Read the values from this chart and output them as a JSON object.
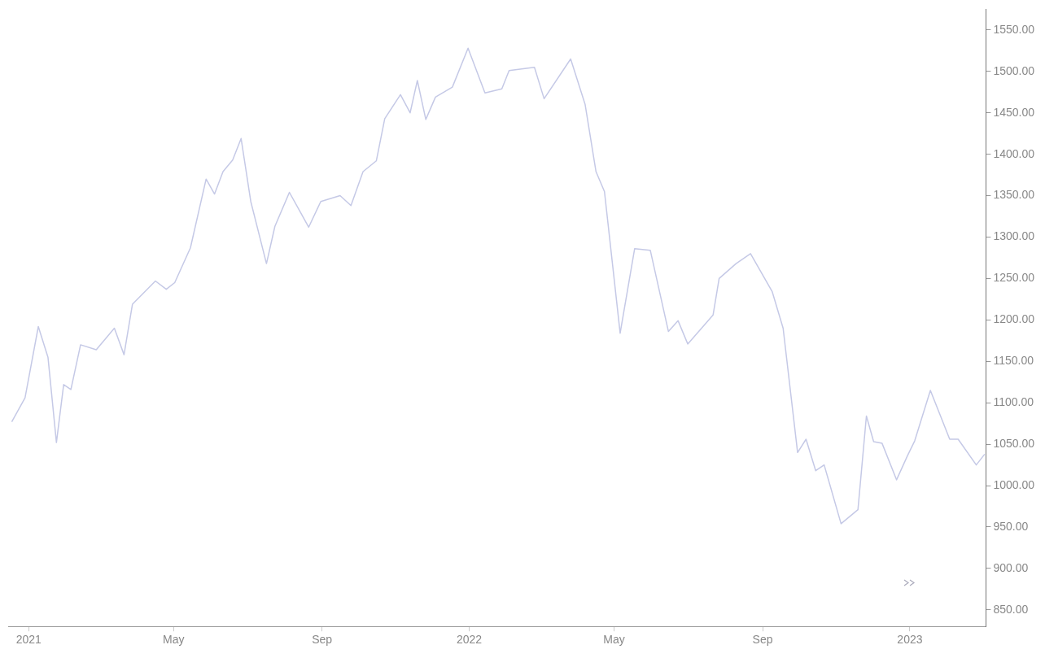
{
  "chart_data": {
    "type": "line",
    "x": [
      "2020-12-18",
      "2020-12-29",
      "2021-01-09",
      "2021-01-17",
      "2021-01-24",
      "2021-01-30",
      "2021-02-05",
      "2021-02-13",
      "2021-02-26",
      "2021-03-13",
      "2021-03-21",
      "2021-03-28",
      "2021-04-16",
      "2021-04-25",
      "2021-05-02",
      "2021-05-15",
      "2021-05-28",
      "2021-06-04",
      "2021-06-11",
      "2021-06-19",
      "2021-06-26",
      "2021-07-04",
      "2021-07-17",
      "2021-07-24",
      "2021-08-05",
      "2021-08-21",
      "2021-08-31",
      "2021-09-16",
      "2021-09-25",
      "2021-10-05",
      "2021-10-16",
      "2021-10-23",
      "2021-11-05",
      "2021-11-13",
      "2021-11-19",
      "2021-11-26",
      "2021-12-04",
      "2021-12-18",
      "2021-12-31",
      "2022-01-14",
      "2022-01-28",
      "2022-02-03",
      "2022-02-24",
      "2022-03-04",
      "2022-03-26",
      "2022-04-07",
      "2022-04-16",
      "2022-04-23",
      "2022-05-06",
      "2022-05-18",
      "2022-05-31",
      "2022-06-15",
      "2022-06-23",
      "2022-07-01",
      "2022-07-22",
      "2022-07-27",
      "2022-08-10",
      "2022-08-22",
      "2022-09-09",
      "2022-09-18",
      "2022-09-30",
      "2022-10-07",
      "2022-10-15",
      "2022-10-22",
      "2022-11-05",
      "2022-11-19",
      "2022-11-26",
      "2022-12-02",
      "2022-12-09",
      "2022-12-21",
      "2022-12-30",
      "2023-01-05",
      "2023-01-18",
      "2023-02-03",
      "2023-02-10",
      "2023-02-25",
      "2023-03-04"
    ],
    "series": [
      {
        "color": "#c5c9e6",
        "values": [
          1077,
          1106,
          1192,
          1155,
          1052,
          1122,
          1116,
          1170,
          1164,
          1190,
          1158,
          1219,
          1247,
          1237,
          1245,
          1287,
          1370,
          1352,
          1379,
          1393,
          1419,
          1343,
          1268,
          1313,
          1354,
          1312,
          1343,
          1350,
          1338,
          1379,
          1392,
          1443,
          1472,
          1450,
          1489,
          1442,
          1469,
          1481,
          1528,
          1474,
          1479,
          1501,
          1505,
          1467,
          1515,
          1460,
          1379,
          1355,
          1184,
          1286,
          1284,
          1186,
          1199,
          1171,
          1206,
          1250,
          1268,
          1280,
          1234,
          1190,
          1040,
          1056,
          1018,
          1025,
          954,
          971,
          1084,
          1053,
          1051,
          1007,
          1036,
          1054,
          1115,
          1056,
          1056,
          1025,
          1038
        ]
      }
    ],
    "xlim": [
      "2020-12-15",
      "2023-03-05"
    ],
    "xticks": [
      {
        "value": "2021-01-01",
        "label": "2021"
      },
      {
        "value": "2021-05-01",
        "label": "May"
      },
      {
        "value": "2021-09-01",
        "label": "Sep"
      },
      {
        "value": "2022-01-01",
        "label": "2022"
      },
      {
        "value": "2022-05-01",
        "label": "May"
      },
      {
        "value": "2022-09-01",
        "label": "Sep"
      },
      {
        "value": "2023-01-01",
        "label": "2023"
      }
    ],
    "ylim": [
      830,
      1575
    ],
    "yticks": [
      {
        "value": 850,
        "label": "850.00"
      },
      {
        "value": 900,
        "label": "900.00"
      },
      {
        "value": 950,
        "label": "950.00"
      },
      {
        "value": 1000,
        "label": "1000.00"
      },
      {
        "value": 1050,
        "label": "1050.00"
      },
      {
        "value": 1100,
        "label": "1100.00"
      },
      {
        "value": 1150,
        "label": "1150.00"
      },
      {
        "value": 1200,
        "label": "1200.00"
      },
      {
        "value": 1250,
        "label": "1250.00"
      },
      {
        "value": 1300,
        "label": "1300.00"
      },
      {
        "value": 1350,
        "label": "1350.00"
      },
      {
        "value": 1400,
        "label": "1400.00"
      },
      {
        "value": 1450,
        "label": "1450.00"
      },
      {
        "value": 1500,
        "label": "1500.00"
      },
      {
        "value": 1550,
        "label": "1550.00"
      }
    ],
    "grid": false,
    "legend": false,
    "marker": "none",
    "line_style": "solid"
  }
}
